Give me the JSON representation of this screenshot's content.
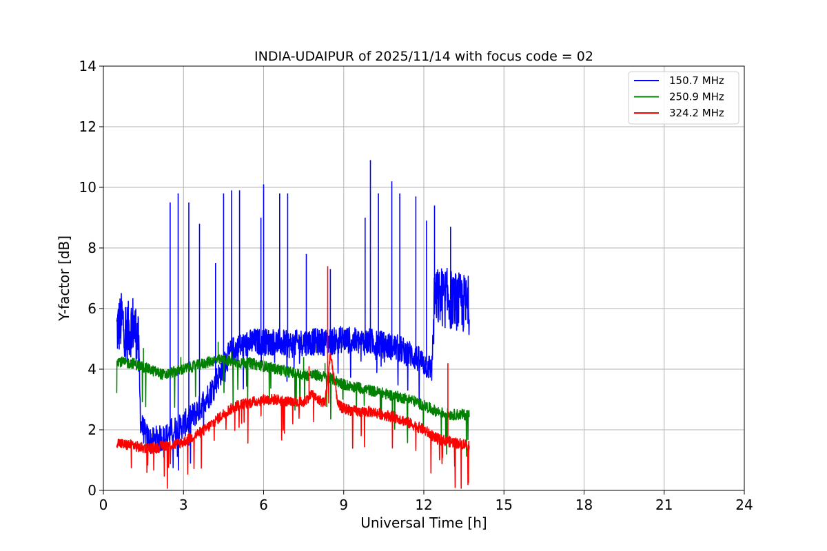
{
  "chart_data": {
    "type": "line",
    "title": "INDIA-UDAIPUR of 2025/11/14 with focus code = 02",
    "xlabel": "Universal Time [h]",
    "ylabel": "Y-factor [dB]",
    "xlim": [
      0,
      24
    ],
    "ylim": [
      0,
      14
    ],
    "xticks": [
      0,
      3,
      6,
      9,
      12,
      15,
      18,
      21,
      24
    ],
    "yticks": [
      0,
      2,
      4,
      6,
      8,
      10,
      12,
      14
    ],
    "grid": true,
    "legend_position": "top-right",
    "series": [
      {
        "name": "150.7 MHz",
        "color": "#0000ff",
        "points": [
          [
            0.5,
            5.3
          ],
          [
            0.7,
            5.6
          ],
          [
            0.9,
            5.2
          ],
          [
            1.1,
            5.5
          ],
          [
            1.3,
            5.0
          ],
          [
            1.4,
            2.2
          ],
          [
            1.6,
            1.8
          ],
          [
            1.8,
            1.6
          ],
          [
            2.0,
            1.7
          ],
          [
            2.2,
            1.7
          ],
          [
            2.4,
            1.8
          ],
          [
            2.6,
            2.0
          ],
          [
            2.8,
            2.0
          ],
          [
            3.0,
            2.2
          ],
          [
            3.2,
            2.3
          ],
          [
            3.4,
            2.5
          ],
          [
            3.6,
            2.7
          ],
          [
            3.8,
            3.0
          ],
          [
            4.0,
            3.2
          ],
          [
            4.2,
            3.6
          ],
          [
            4.4,
            3.9
          ],
          [
            4.6,
            4.3
          ],
          [
            4.8,
            4.6
          ],
          [
            5.0,
            4.7
          ],
          [
            5.3,
            4.8
          ],
          [
            5.6,
            4.9
          ],
          [
            6.0,
            4.9
          ],
          [
            6.5,
            4.9
          ],
          [
            7.0,
            4.8
          ],
          [
            7.5,
            4.9
          ],
          [
            8.0,
            4.9
          ],
          [
            8.5,
            4.9
          ],
          [
            9.0,
            5.0
          ],
          [
            9.5,
            4.9
          ],
          [
            10.0,
            4.9
          ],
          [
            10.5,
            4.8
          ],
          [
            11.0,
            4.7
          ],
          [
            11.5,
            4.5
          ],
          [
            12.0,
            4.2
          ],
          [
            12.3,
            4.0
          ],
          [
            12.4,
            6.3
          ],
          [
            12.7,
            6.4
          ],
          [
            13.0,
            6.3
          ],
          [
            13.3,
            6.2
          ],
          [
            13.7,
            6.1
          ]
        ],
        "spikes": [
          [
            2.5,
            9.5
          ],
          [
            2.8,
            9.8
          ],
          [
            3.2,
            9.5
          ],
          [
            3.6,
            8.8
          ],
          [
            4.2,
            7.5
          ],
          [
            4.5,
            9.8
          ],
          [
            4.8,
            9.9
          ],
          [
            5.1,
            9.9
          ],
          [
            5.9,
            9.0
          ],
          [
            6.0,
            10.1
          ],
          [
            6.6,
            9.8
          ],
          [
            6.9,
            9.8
          ],
          [
            7.6,
            7.8
          ],
          [
            8.5,
            7.3
          ],
          [
            9.8,
            9.0
          ],
          [
            10.0,
            10.9
          ],
          [
            10.3,
            9.8
          ],
          [
            10.8,
            10.2
          ],
          [
            11.1,
            9.8
          ],
          [
            11.7,
            9.7
          ],
          [
            12.1,
            8.9
          ],
          [
            12.4,
            9.4
          ],
          [
            13.0,
            8.7
          ]
        ]
      },
      {
        "name": "250.9 MHz",
        "color": "#008000",
        "points": [
          [
            0.5,
            4.3
          ],
          [
            0.8,
            4.2
          ],
          [
            1.1,
            4.2
          ],
          [
            1.4,
            4.1
          ],
          [
            1.7,
            4.0
          ],
          [
            2.0,
            3.9
          ],
          [
            2.3,
            3.8
          ],
          [
            2.6,
            3.9
          ],
          [
            3.0,
            4.0
          ],
          [
            3.4,
            4.1
          ],
          [
            3.8,
            4.2
          ],
          [
            4.2,
            4.3
          ],
          [
            4.6,
            4.3
          ],
          [
            5.0,
            4.2
          ],
          [
            5.5,
            4.2
          ],
          [
            6.0,
            4.1
          ],
          [
            6.5,
            4.0
          ],
          [
            7.0,
            3.9
          ],
          [
            7.5,
            3.8
          ],
          [
            8.0,
            3.8
          ],
          [
            8.5,
            3.7
          ],
          [
            9.0,
            3.5
          ],
          [
            9.5,
            3.4
          ],
          [
            10.0,
            3.3
          ],
          [
            10.5,
            3.2
          ],
          [
            11.0,
            3.1
          ],
          [
            11.5,
            3.0
          ],
          [
            12.0,
            2.8
          ],
          [
            12.5,
            2.6
          ],
          [
            13.0,
            2.5
          ],
          [
            13.7,
            2.5
          ]
        ],
        "spikes": [
          [
            1.5,
            4.7
          ],
          [
            2.9,
            4.4
          ],
          [
            4.3,
            4.9
          ],
          [
            4.8,
            4.6
          ],
          [
            7.5,
            4.4
          ],
          [
            8.3,
            4.2
          ]
        ]
      },
      {
        "name": "324.2 MHz",
        "color": "#ff0000",
        "points": [
          [
            0.5,
            1.6
          ],
          [
            0.8,
            1.5
          ],
          [
            1.1,
            1.5
          ],
          [
            1.4,
            1.4
          ],
          [
            1.7,
            1.4
          ],
          [
            2.0,
            1.4
          ],
          [
            2.3,
            1.5
          ],
          [
            2.6,
            1.5
          ],
          [
            3.0,
            1.6
          ],
          [
            3.4,
            1.8
          ],
          [
            3.8,
            2.0
          ],
          [
            4.2,
            2.3
          ],
          [
            4.6,
            2.6
          ],
          [
            5.0,
            2.8
          ],
          [
            5.5,
            2.9
          ],
          [
            6.0,
            3.0
          ],
          [
            6.5,
            3.0
          ],
          [
            7.0,
            2.9
          ],
          [
            7.5,
            2.9
          ],
          [
            7.8,
            3.2
          ],
          [
            8.0,
            3.0
          ],
          [
            8.3,
            2.9
          ],
          [
            8.5,
            4.5
          ],
          [
            8.8,
            2.8
          ],
          [
            9.0,
            2.7
          ],
          [
            9.5,
            2.6
          ],
          [
            10.0,
            2.6
          ],
          [
            10.5,
            2.5
          ],
          [
            11.0,
            2.4
          ],
          [
            11.5,
            2.2
          ],
          [
            12.0,
            2.0
          ],
          [
            12.5,
            1.7
          ],
          [
            13.0,
            1.6
          ],
          [
            13.7,
            1.5
          ]
        ],
        "spikes": [
          [
            7.7,
            4.1
          ],
          [
            8.4,
            7.4
          ],
          [
            12.9,
            4.2
          ]
        ]
      }
    ]
  }
}
